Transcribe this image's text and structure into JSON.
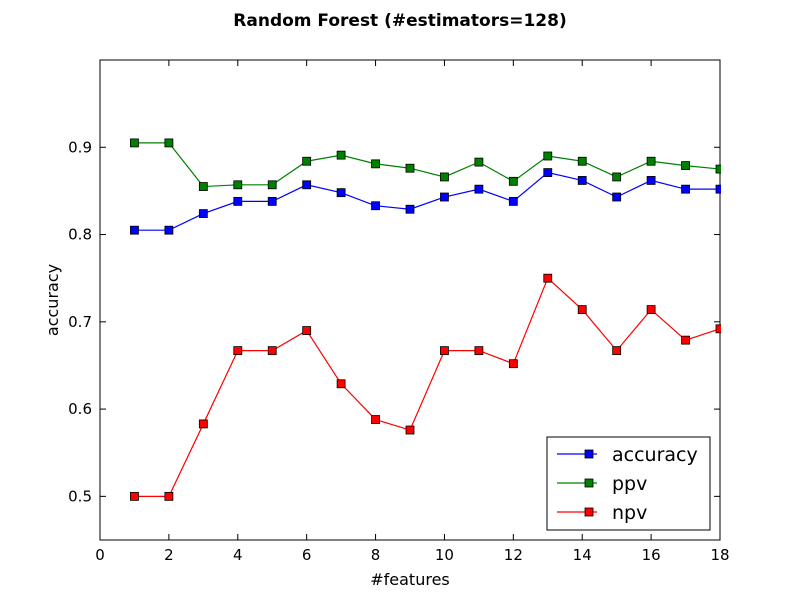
{
  "chart_data": {
    "type": "line",
    "title": "Random Forest (#estimators=128)",
    "xlabel": "#features",
    "ylabel": "accuracy",
    "xlim": [
      0,
      18
    ],
    "ylim": [
      0.45,
      1.0
    ],
    "xticks": [
      0,
      2,
      4,
      6,
      8,
      10,
      12,
      14,
      16,
      18
    ],
    "xtick_labels": [
      "0",
      "2",
      "4",
      "6",
      "8",
      "10",
      "12",
      "14",
      "16",
      "18"
    ],
    "yticks": [
      0.5,
      0.6,
      0.7,
      0.8,
      0.9
    ],
    "ytick_labels": [
      "0.5",
      "0.6",
      "0.7",
      "0.8",
      "0.9"
    ],
    "grid": false,
    "legend_position": "lower-right",
    "x": [
      1,
      2,
      3,
      4,
      5,
      6,
      7,
      8,
      9,
      10,
      11,
      12,
      13,
      14,
      15,
      16,
      17,
      18
    ],
    "series": [
      {
        "name": "accuracy",
        "color": "#0000ff",
        "marker": "square",
        "values": [
          0.805,
          0.805,
          0.824,
          0.838,
          0.838,
          0.857,
          0.848,
          0.833,
          0.829,
          0.843,
          0.852,
          0.838,
          0.871,
          0.862,
          0.843,
          0.862,
          0.852,
          0.852
        ]
      },
      {
        "name": "ppv",
        "color": "#008000",
        "marker": "square",
        "values": [
          0.905,
          0.905,
          0.855,
          0.857,
          0.857,
          0.884,
          0.891,
          0.881,
          0.876,
          0.866,
          0.883,
          0.861,
          0.89,
          0.884,
          0.866,
          0.884,
          0.879,
          0.875
        ]
      },
      {
        "name": "npv",
        "color": "#ff0000",
        "marker": "square",
        "values": [
          0.5,
          0.5,
          0.583,
          0.667,
          0.667,
          0.69,
          0.629,
          0.588,
          0.576,
          0.667,
          0.667,
          0.652,
          0.75,
          0.714,
          0.667,
          0.714,
          0.679,
          0.692
        ]
      }
    ]
  }
}
